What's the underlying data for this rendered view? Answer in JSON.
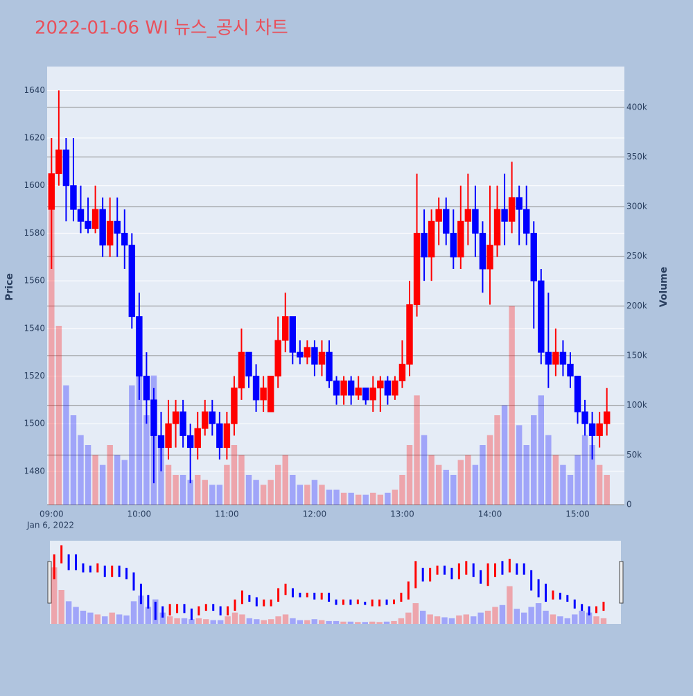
{
  "chart_data": {
    "type": "candlestick",
    "title": "2022-01-06 WI 뉴스_공시 차트",
    "y_label": "Price",
    "y2_label": "Volume",
    "date_label": "Jan 6, 2022",
    "increasing_color": "#ff0000",
    "decreasing_color": "#0000ff",
    "x": [
      "09:00",
      "09:05",
      "09:10",
      "09:15",
      "09:20",
      "09:25",
      "09:30",
      "09:35",
      "09:40",
      "09:45",
      "09:50",
      "09:55",
      "10:00",
      "10:05",
      "10:10",
      "10:15",
      "10:20",
      "10:25",
      "10:30",
      "10:35",
      "10:40",
      "10:45",
      "10:50",
      "10:55",
      "11:00",
      "11:05",
      "11:10",
      "11:15",
      "11:20",
      "11:25",
      "11:30",
      "11:35",
      "11:40",
      "11:45",
      "11:50",
      "11:55",
      "12:00",
      "12:05",
      "12:10",
      "12:15",
      "12:20",
      "12:25",
      "12:30",
      "12:35",
      "12:40",
      "12:45",
      "12:50",
      "12:55",
      "13:00",
      "13:05",
      "13:10",
      "13:15",
      "13:20",
      "13:25",
      "13:30",
      "13:35",
      "13:40",
      "13:45",
      "13:50",
      "13:55",
      "14:00",
      "14:05",
      "14:10",
      "14:15",
      "14:20",
      "14:25",
      "14:30",
      "14:35",
      "14:40",
      "14:45",
      "14:50",
      "14:55",
      "15:00",
      "15:05",
      "15:10",
      "15:15",
      "15:20"
    ],
    "open": [
      1590,
      1605,
      1615,
      1600,
      1590,
      1585,
      1582,
      1590,
      1575,
      1585,
      1580,
      1575,
      1545,
      1520,
      1510,
      1495,
      1490,
      1500,
      1505,
      1495,
      1490,
      1498,
      1505,
      1500,
      1490,
      1500,
      1515,
      1530,
      1520,
      1510,
      1505,
      1520,
      1535,
      1545,
      1530,
      1528,
      1532,
      1525,
      1530,
      1518,
      1512,
      1518,
      1512,
      1515,
      1510,
      1515,
      1518,
      1512,
      1518,
      1525,
      1550,
      1580,
      1570,
      1585,
      1590,
      1580,
      1570,
      1585,
      1590,
      1580,
      1565,
      1575,
      1590,
      1585,
      1595,
      1590,
      1580,
      1560,
      1530,
      1525,
      1530,
      1525,
      1520,
      1505,
      1500,
      1495,
      1500
    ],
    "high": [
      1620,
      1640,
      1620,
      1620,
      1600,
      1595,
      1600,
      1595,
      1595,
      1595,
      1590,
      1580,
      1555,
      1530,
      1515,
      1505,
      1510,
      1510,
      1510,
      1500,
      1505,
      1510,
      1510,
      1505,
      1505,
      1520,
      1540,
      1530,
      1525,
      1520,
      1520,
      1545,
      1555,
      1545,
      1535,
      1535,
      1535,
      1535,
      1535,
      1520,
      1520,
      1520,
      1520,
      1515,
      1520,
      1520,
      1520,
      1520,
      1535,
      1560,
      1605,
      1590,
      1590,
      1595,
      1595,
      1590,
      1600,
      1605,
      1600,
      1585,
      1600,
      1600,
      1605,
      1610,
      1600,
      1600,
      1585,
      1565,
      1555,
      1540,
      1535,
      1530,
      1520,
      1510,
      1505,
      1505,
      1515
    ],
    "low": [
      1565,
      1600,
      1585,
      1585,
      1580,
      1580,
      1580,
      1570,
      1570,
      1570,
      1565,
      1540,
      1510,
      1500,
      1475,
      1480,
      1485,
      1490,
      1490,
      1475,
      1485,
      1495,
      1495,
      1485,
      1485,
      1495,
      1510,
      1515,
      1505,
      1505,
      1505,
      1515,
      1530,
      1525,
      1525,
      1525,
      1520,
      1520,
      1515,
      1508,
      1508,
      1508,
      1510,
      1508,
      1505,
      1505,
      1508,
      1510,
      1515,
      1520,
      1545,
      1560,
      1560,
      1575,
      1575,
      1565,
      1565,
      1575,
      1570,
      1555,
      1550,
      1570,
      1575,
      1580,
      1575,
      1575,
      1540,
      1525,
      1515,
      1520,
      1520,
      1515,
      1500,
      1495,
      1485,
      1490,
      1495
    ],
    "close": [
      1605,
      1615,
      1600,
      1590,
      1585,
      1582,
      1590,
      1575,
      1585,
      1580,
      1575,
      1545,
      1520,
      1510,
      1495,
      1490,
      1500,
      1505,
      1495,
      1490,
      1498,
      1505,
      1500,
      1490,
      1500,
      1515,
      1530,
      1520,
      1510,
      1515,
      1520,
      1535,
      1545,
      1530,
      1528,
      1532,
      1525,
      1530,
      1518,
      1512,
      1518,
      1512,
      1515,
      1510,
      1515,
      1518,
      1512,
      1518,
      1525,
      1550,
      1580,
      1570,
      1585,
      1590,
      1580,
      1570,
      1585,
      1590,
      1580,
      1565,
      1575,
      1590,
      1585,
      1595,
      1590,
      1580,
      1560,
      1530,
      1525,
      1530,
      1525,
      1520,
      1505,
      1500,
      1495,
      1500,
      1505
    ],
    "volume": [
      300000,
      180000,
      120000,
      90000,
      70000,
      60000,
      50000,
      40000,
      60000,
      50000,
      45000,
      120000,
      150000,
      90000,
      130000,
      60000,
      40000,
      30000,
      30000,
      25000,
      30000,
      25000,
      20000,
      20000,
      40000,
      60000,
      50000,
      30000,
      25000,
      20000,
      25000,
      40000,
      50000,
      30000,
      20000,
      20000,
      25000,
      20000,
      15000,
      15000,
      12000,
      12000,
      10000,
      10000,
      12000,
      10000,
      12000,
      15000,
      30000,
      60000,
      110000,
      70000,
      50000,
      40000,
      35000,
      30000,
      45000,
      50000,
      40000,
      60000,
      70000,
      90000,
      100000,
      200000,
      80000,
      60000,
      90000,
      110000,
      70000,
      50000,
      40000,
      30000,
      50000,
      70000,
      60000,
      40000,
      30000
    ],
    "xlim": [
      "08:57",
      "15:32"
    ],
    "xticks": [
      "09:00",
      "10:00",
      "11:00",
      "12:00",
      "13:00",
      "14:00",
      "15:00"
    ],
    "ylim": [
      1466,
      1650
    ],
    "yticks": [
      1480,
      1500,
      1520,
      1540,
      1560,
      1580,
      1600,
      1620,
      1640
    ],
    "y2lim": [
      0,
      441000
    ],
    "y2ticks": [
      0,
      {
        "value": 50000,
        "label": "50k"
      },
      {
        "value": 100000,
        "label": "100k"
      },
      {
        "value": 150000,
        "label": "150k"
      },
      {
        "value": 200000,
        "label": "200k"
      },
      {
        "value": 250000,
        "label": "250k"
      },
      {
        "value": 300000,
        "label": "300k"
      },
      {
        "value": 350000,
        "label": "350k"
      },
      {
        "value": 400000,
        "label": "400k"
      }
    ],
    "rangeslider": true
  }
}
